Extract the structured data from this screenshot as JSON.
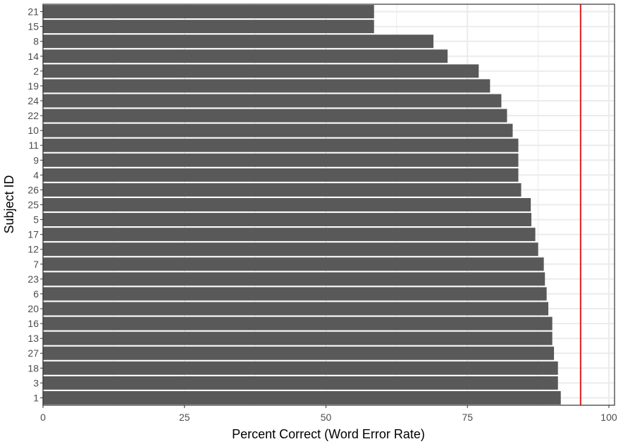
{
  "chart_data": {
    "type": "bar",
    "orientation": "horizontal",
    "xlabel": "Percent Correct (Word Error Rate)",
    "ylabel": "Subject ID",
    "xlim": [
      0,
      101
    ],
    "xticks": [
      0,
      25,
      50,
      75,
      100
    ],
    "grid": true,
    "legend": "none",
    "categories": [
      "21",
      "15",
      "8",
      "14",
      "2",
      "19",
      "24",
      "22",
      "10",
      "11",
      "9",
      "4",
      "26",
      "25",
      "5",
      "17",
      "12",
      "7",
      "23",
      "6",
      "20",
      "16",
      "13",
      "27",
      "18",
      "3",
      "1"
    ],
    "values": [
      58.5,
      58.5,
      69,
      71.5,
      77,
      79,
      81,
      82,
      83,
      84,
      84,
      84,
      84.5,
      86.2,
      86.3,
      87,
      87.5,
      88.5,
      88.7,
      89,
      89.3,
      90,
      90,
      90.3,
      91,
      91,
      91.5
    ],
    "reference_line": {
      "x": 95,
      "color": "#e41a1c"
    },
    "colors": {
      "bar": "#595959",
      "grid": "#ebebeb",
      "panel_border": "#333333"
    }
  }
}
